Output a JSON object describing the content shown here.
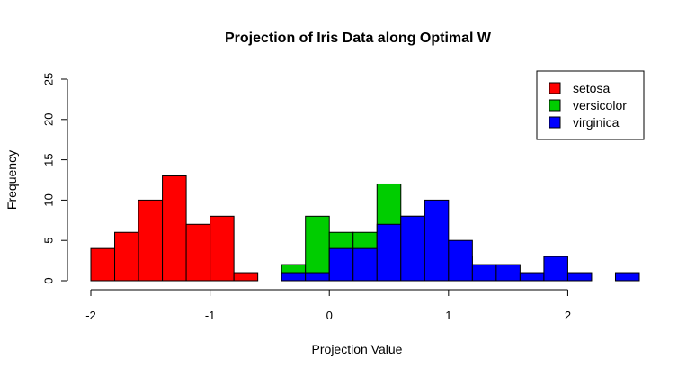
{
  "chart_data": {
    "type": "bar",
    "title": "Projection of Iris Data along Optimal W",
    "xlabel": "Projection Value",
    "ylabel": "Frequency",
    "xlim": [
      -2.0,
      2.6
    ],
    "ylim": [
      0,
      25
    ],
    "x_ticks": [
      -2,
      -1,
      0,
      1,
      2
    ],
    "x_tick_labels": [
      "-2",
      "-1",
      "0",
      "1",
      "2"
    ],
    "y_ticks": [
      0,
      5,
      10,
      15,
      20,
      25
    ],
    "y_tick_labels": [
      "0",
      "5",
      "10",
      "15",
      "20",
      "25"
    ],
    "bin_width": 0.2,
    "legend_position": "top-right",
    "series": [
      {
        "name": "setosa",
        "color": "#ff0000",
        "bins": [
          {
            "x0": -2.0,
            "x1": -1.8,
            "count": 4
          },
          {
            "x0": -1.8,
            "x1": -1.6,
            "count": 6
          },
          {
            "x0": -1.6,
            "x1": -1.4,
            "count": 10
          },
          {
            "x0": -1.4,
            "x1": -1.2,
            "count": 13
          },
          {
            "x0": -1.2,
            "x1": -1.0,
            "count": 7
          },
          {
            "x0": -1.0,
            "x1": -0.8,
            "count": 8
          },
          {
            "x0": -0.8,
            "x1": -0.6,
            "count": 1
          }
        ]
      },
      {
        "name": "versicolor",
        "color": "#00cd00",
        "bins": [
          {
            "x0": -0.4,
            "x1": -0.2,
            "count": 2
          },
          {
            "x0": -0.2,
            "x1": 0.0,
            "count": 8
          },
          {
            "x0": 0.0,
            "x1": 0.2,
            "count": 6
          },
          {
            "x0": 0.2,
            "x1": 0.4,
            "count": 6
          },
          {
            "x0": 0.4,
            "x1": 0.6,
            "count": 12
          },
          {
            "x0": 0.6,
            "x1": 0.8,
            "count": 8
          },
          {
            "x0": 0.8,
            "x1": 1.0,
            "count": 3
          },
          {
            "x0": 1.0,
            "x1": 1.2,
            "count": 3
          }
        ]
      },
      {
        "name": "virginica",
        "color": "#0000ff",
        "bins": [
          {
            "x0": -0.4,
            "x1": -0.2,
            "count": 1
          },
          {
            "x0": -0.2,
            "x1": 0.0,
            "count": 1
          },
          {
            "x0": 0.0,
            "x1": 0.2,
            "count": 4
          },
          {
            "x0": 0.2,
            "x1": 0.4,
            "count": 4
          },
          {
            "x0": 0.4,
            "x1": 0.6,
            "count": 7
          },
          {
            "x0": 0.6,
            "x1": 0.8,
            "count": 8
          },
          {
            "x0": 0.8,
            "x1": 1.0,
            "count": 10
          },
          {
            "x0": 1.0,
            "x1": 1.2,
            "count": 5
          },
          {
            "x0": 1.2,
            "x1": 1.4,
            "count": 2
          },
          {
            "x0": 1.4,
            "x1": 1.6,
            "count": 2
          },
          {
            "x0": 1.6,
            "x1": 1.8,
            "count": 1
          },
          {
            "x0": 1.8,
            "x1": 2.0,
            "count": 3
          },
          {
            "x0": 2.0,
            "x1": 2.2,
            "count": 1
          },
          {
            "x0": 2.4,
            "x1": 2.6,
            "count": 1
          }
        ]
      }
    ]
  }
}
